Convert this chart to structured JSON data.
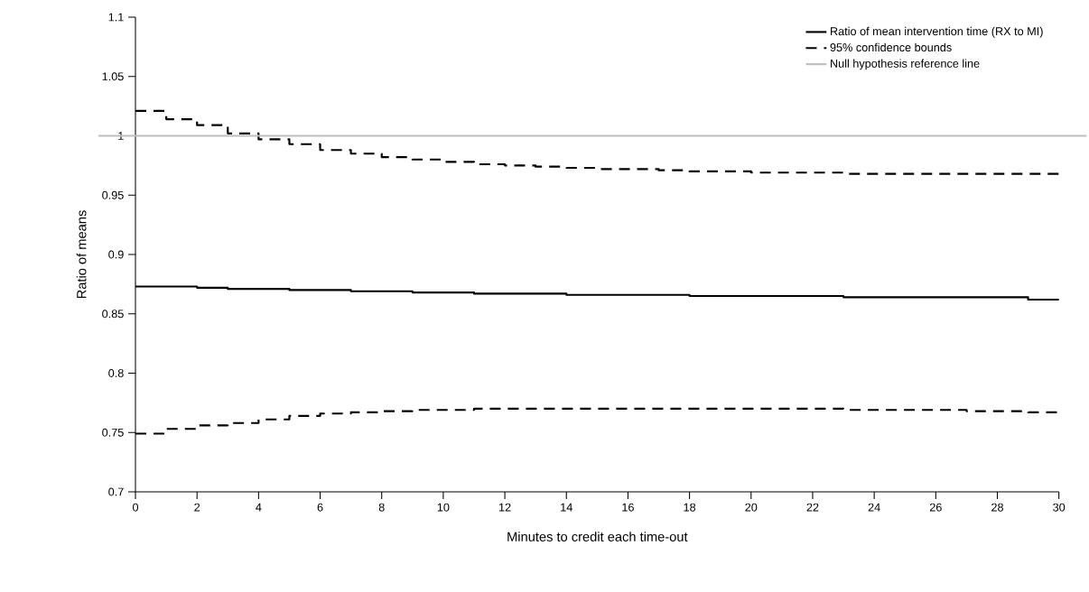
{
  "chart_data": {
    "type": "step",
    "xlabel": "Minutes to credit each time-out",
    "ylabel": "Ratio of means",
    "x": [
      0,
      1,
      2,
      3,
      4,
      5,
      6,
      7,
      8,
      9,
      10,
      11,
      12,
      13,
      14,
      15,
      16,
      17,
      18,
      19,
      20,
      21,
      22,
      23,
      24,
      25,
      26,
      27,
      28,
      29,
      30
    ],
    "series": [
      {
        "name": "Ratio of mean intervention time (RX to MI)",
        "color": "#000000",
        "line_style": "solid",
        "values": [
          0.873,
          0.873,
          0.872,
          0.871,
          0.871,
          0.87,
          0.87,
          0.869,
          0.869,
          0.868,
          0.868,
          0.867,
          0.867,
          0.867,
          0.866,
          0.866,
          0.866,
          0.866,
          0.865,
          0.865,
          0.865,
          0.865,
          0.865,
          0.864,
          0.864,
          0.864,
          0.864,
          0.864,
          0.864,
          0.862,
          0.862
        ]
      },
      {
        "name": "95% confidence bounds",
        "color": "#000000",
        "line_style": "dashed",
        "values": [
          1.021,
          1.014,
          1.009,
          1.002,
          0.997,
          0.993,
          0.988,
          0.985,
          0.982,
          0.98,
          0.978,
          0.976,
          0.975,
          0.974,
          0.973,
          0.972,
          0.972,
          0.971,
          0.97,
          0.97,
          0.969,
          0.969,
          0.969,
          0.968,
          0.968,
          0.968,
          0.968,
          0.968,
          0.968,
          0.968,
          0.968
        ]
      },
      {
        "color": "#000000",
        "line_style": "dashed",
        "values": [
          0.749,
          0.753,
          0.756,
          0.758,
          0.761,
          0.764,
          0.766,
          0.767,
          0.768,
          0.769,
          0.769,
          0.77,
          0.77,
          0.77,
          0.77,
          0.77,
          0.77,
          0.77,
          0.77,
          0.77,
          0.77,
          0.77,
          0.77,
          0.769,
          0.769,
          0.769,
          0.769,
          0.768,
          0.768,
          0.767,
          0.767
        ]
      }
    ],
    "xlim": [
      0,
      30
    ],
    "xticks": [
      0,
      2,
      4,
      6,
      8,
      10,
      12,
      14,
      16,
      18,
      20,
      22,
      24,
      26,
      28,
      30
    ],
    "ylim": [
      0.7,
      1.1
    ],
    "yticks": [
      0.7,
      0.75,
      0.8,
      0.85,
      0.9,
      0.95,
      1,
      1.05,
      1.1
    ],
    "ref_lines": [
      {
        "axis": "y",
        "value": 1,
        "label": "Null hypothesis reference line",
        "color": "#bebebe"
      }
    ],
    "legend": "top right"
  }
}
